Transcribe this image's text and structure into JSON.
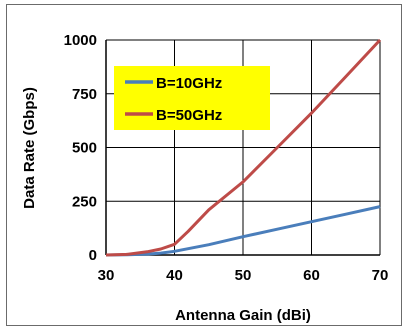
{
  "chart_data": {
    "type": "line",
    "title": "",
    "xlabel": "Antenna Gain (dBi)",
    "ylabel": "Data Rate (Gbps)",
    "xlim": [
      30,
      70
    ],
    "ylim": [
      0,
      1000
    ],
    "xticks": [
      30,
      40,
      50,
      60,
      70
    ],
    "yticks": [
      0,
      250,
      500,
      750,
      1000
    ],
    "grid": true,
    "legend": {
      "placement": "top-left",
      "background": "#ffff00"
    },
    "series": [
      {
        "name": "B=10GHz",
        "color": "#4a7ebb",
        "x": [
          30,
          33,
          36,
          38,
          40,
          45,
          50,
          55,
          60,
          65,
          70
        ],
        "values": [
          0,
          1,
          4,
          9,
          17,
          48,
          85,
          120,
          155,
          190,
          225
        ]
      },
      {
        "name": "B=50GHz",
        "color": "#be4b48",
        "x": [
          30,
          33,
          36,
          38,
          40,
          42,
          45,
          50,
          55,
          60,
          65,
          70
        ],
        "values": [
          0,
          3,
          15,
          28,
          50,
          110,
          210,
          340,
          500,
          660,
          830,
          1000
        ]
      }
    ]
  }
}
